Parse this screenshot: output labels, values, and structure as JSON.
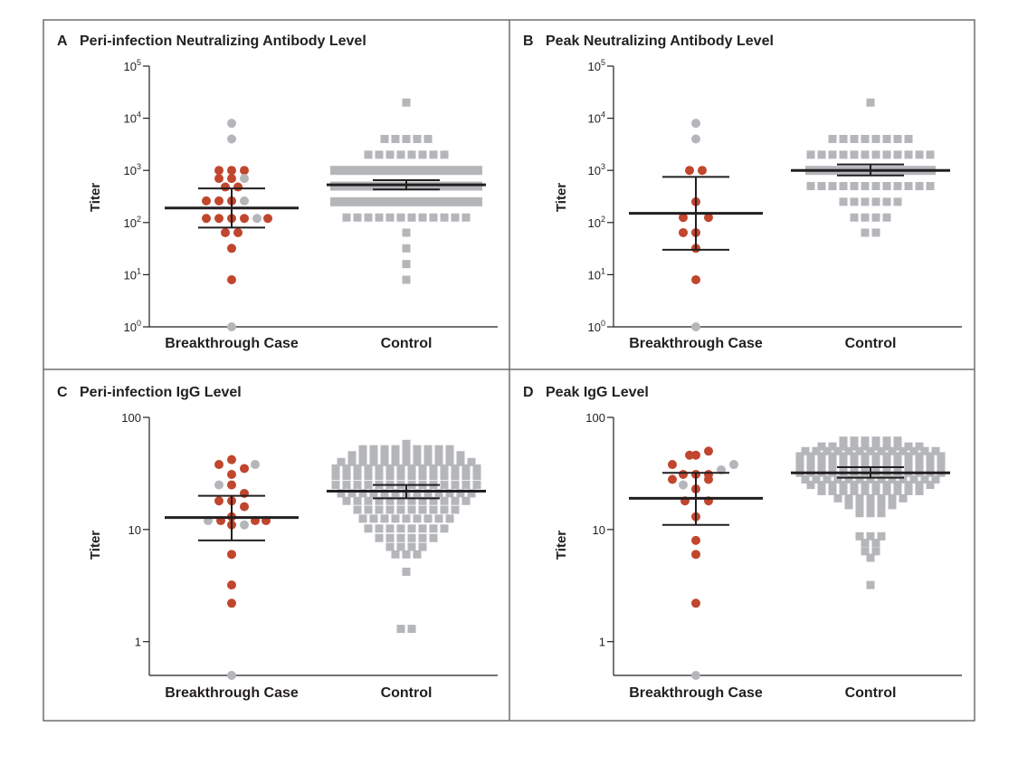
{
  "colors": {
    "breakthrough": "#c0462d",
    "control_gray": "#b4b6ba",
    "axis": "#231f20",
    "frame": "#6d6e71"
  },
  "chart_data": [
    {
      "id": "A",
      "type": "scatter",
      "title": "Peri-infection Neutralizing Antibody Level",
      "ylabel": "Titer",
      "yscale": "log",
      "ylim": [
        1,
        100000
      ],
      "yticks": [
        {
          "value": 1,
          "base": "10",
          "exp": "0"
        },
        {
          "value": 10,
          "base": "10",
          "exp": "1"
        },
        {
          "value": 100,
          "base": "10",
          "exp": "2"
        },
        {
          "value": 1000,
          "base": "10",
          "exp": "3"
        },
        {
          "value": 10000,
          "base": "10",
          "exp": "4"
        },
        {
          "value": 100000,
          "base": "10",
          "exp": "5"
        }
      ],
      "categories": [
        "Breakthrough Case",
        "Control"
      ],
      "series": [
        {
          "name": "Breakthrough Case",
          "points": [
            {
              "y": 8000,
              "x_off": 0,
              "c": "gray"
            },
            {
              "y": 4000,
              "x_off": 0,
              "c": "gray"
            },
            {
              "y": 1000,
              "x_off": -14,
              "c": "red"
            },
            {
              "y": 1000,
              "x_off": 0,
              "c": "red"
            },
            {
              "y": 1000,
              "x_off": 14,
              "c": "red"
            },
            {
              "y": 700,
              "x_off": -14,
              "c": "red"
            },
            {
              "y": 700,
              "x_off": 0,
              "c": "red"
            },
            {
              "y": 700,
              "x_off": 14,
              "c": "gray"
            },
            {
              "y": 480,
              "x_off": -7,
              "c": "red"
            },
            {
              "y": 480,
              "x_off": 7,
              "c": "red"
            },
            {
              "y": 260,
              "x_off": -28,
              "c": "red"
            },
            {
              "y": 260,
              "x_off": -14,
              "c": "red"
            },
            {
              "y": 260,
              "x_off": 0,
              "c": "red"
            },
            {
              "y": 260,
              "x_off": 14,
              "c": "gray"
            },
            {
              "y": 120,
              "x_off": -28,
              "c": "red"
            },
            {
              "y": 120,
              "x_off": -14,
              "c": "red"
            },
            {
              "y": 120,
              "x_off": 0,
              "c": "red"
            },
            {
              "y": 120,
              "x_off": 14,
              "c": "red"
            },
            {
              "y": 120,
              "x_off": 28,
              "c": "gray"
            },
            {
              "y": 120,
              "x_off": 40,
              "c": "red"
            },
            {
              "y": 64,
              "x_off": -7,
              "c": "red"
            },
            {
              "y": 64,
              "x_off": 7,
              "c": "red"
            },
            {
              "y": 32,
              "x_off": 0,
              "c": "red"
            },
            {
              "y": 8,
              "x_off": 0,
              "c": "red"
            },
            {
              "y": 1,
              "x_off": 0,
              "c": "gray"
            }
          ],
          "mean": 190,
          "ci": [
            80,
            450
          ]
        },
        {
          "name": "Control",
          "rows": [
            {
              "y": 20000,
              "n": 1
            },
            {
              "y": 4000,
              "n": 5
            },
            {
              "y": 2000,
              "n": 8
            },
            {
              "y": 1000,
              "n": 14,
              "band": true
            },
            {
              "y": 500,
              "n": 14,
              "band": true
            },
            {
              "y": 250,
              "n": 14,
              "band": true
            },
            {
              "y": 125,
              "n": 12
            },
            {
              "y": 64,
              "n": 1
            },
            {
              "y": 32,
              "n": 1
            },
            {
              "y": 16,
              "n": 1
            },
            {
              "y": 8,
              "n": 1
            }
          ],
          "mean": 530,
          "ci": [
            430,
            650
          ]
        }
      ]
    },
    {
      "id": "B",
      "type": "scatter",
      "title": "Peak Neutralizing Antibody Level",
      "ylabel": "Titer",
      "yscale": "log",
      "ylim": [
        1,
        100000
      ],
      "yticks": [
        {
          "value": 1,
          "base": "10",
          "exp": "0"
        },
        {
          "value": 10,
          "base": "10",
          "exp": "1"
        },
        {
          "value": 100,
          "base": "10",
          "exp": "2"
        },
        {
          "value": 1000,
          "base": "10",
          "exp": "3"
        },
        {
          "value": 10000,
          "base": "10",
          "exp": "4"
        },
        {
          "value": 100000,
          "base": "10",
          "exp": "5"
        }
      ],
      "categories": [
        "Breakthrough Case",
        "Control"
      ],
      "series": [
        {
          "name": "Breakthrough Case",
          "points": [
            {
              "y": 8000,
              "x_off": 0,
              "c": "gray"
            },
            {
              "y": 4000,
              "x_off": 0,
              "c": "gray"
            },
            {
              "y": 1000,
              "x_off": -7,
              "c": "red"
            },
            {
              "y": 1000,
              "x_off": 7,
              "c": "red"
            },
            {
              "y": 250,
              "x_off": 0,
              "c": "red"
            },
            {
              "y": 125,
              "x_off": -14,
              "c": "red"
            },
            {
              "y": 125,
              "x_off": 14,
              "c": "red"
            },
            {
              "y": 64,
              "x_off": -14,
              "c": "red"
            },
            {
              "y": 64,
              "x_off": 0,
              "c": "red"
            },
            {
              "y": 32,
              "x_off": 0,
              "c": "red"
            },
            {
              "y": 8,
              "x_off": 0,
              "c": "red"
            },
            {
              "y": 1,
              "x_off": 0,
              "c": "gray"
            }
          ],
          "mean": 150,
          "ci": [
            30,
            750
          ]
        },
        {
          "name": "Control",
          "rows": [
            {
              "y": 20000,
              "n": 1
            },
            {
              "y": 4000,
              "n": 8
            },
            {
              "y": 2000,
              "n": 12
            },
            {
              "y": 1000,
              "n": 12,
              "band": true
            },
            {
              "y": 500,
              "n": 12
            },
            {
              "y": 250,
              "n": 6
            },
            {
              "y": 125,
              "n": 4
            },
            {
              "y": 64,
              "n": 2
            }
          ],
          "mean": 1000,
          "ci": [
            800,
            1300
          ]
        }
      ]
    },
    {
      "id": "C",
      "type": "scatter",
      "title": "Peri-infection IgG Level",
      "ylabel": "Titer",
      "yscale": "log",
      "ylim": [
        0.5,
        100
      ],
      "yticks": [
        {
          "value": 1,
          "base": "1",
          "exp": ""
        },
        {
          "value": 10,
          "base": "10",
          "exp": ""
        },
        {
          "value": 100,
          "base": "100",
          "exp": ""
        }
      ],
      "categories": [
        "Breakthrough Case",
        "Control"
      ],
      "series": [
        {
          "name": "Breakthrough Case",
          "points": [
            {
              "y": 42,
              "x_off": 0,
              "c": "red"
            },
            {
              "y": 38,
              "x_off": -14,
              "c": "red"
            },
            {
              "y": 38,
              "x_off": 26,
              "c": "gray"
            },
            {
              "y": 35,
              "x_off": 14,
              "c": "red"
            },
            {
              "y": 31,
              "x_off": 0,
              "c": "red"
            },
            {
              "y": 25,
              "x_off": -14,
              "c": "gray"
            },
            {
              "y": 25,
              "x_off": 0,
              "c": "red"
            },
            {
              "y": 21,
              "x_off": 14,
              "c": "red"
            },
            {
              "y": 18,
              "x_off": -14,
              "c": "red"
            },
            {
              "y": 18,
              "x_off": 0,
              "c": "red"
            },
            {
              "y": 16,
              "x_off": 14,
              "c": "red"
            },
            {
              "y": 13,
              "x_off": 0,
              "c": "red"
            },
            {
              "y": 12,
              "x_off": -26,
              "c": "gray"
            },
            {
              "y": 12,
              "x_off": -12,
              "c": "red"
            },
            {
              "y": 12,
              "x_off": 26,
              "c": "red"
            },
            {
              "y": 12,
              "x_off": 38,
              "c": "red"
            },
            {
              "y": 11,
              "x_off": 0,
              "c": "red"
            },
            {
              "y": 11,
              "x_off": 14,
              "c": "gray"
            },
            {
              "y": 6,
              "x_off": 0,
              "c": "red"
            },
            {
              "y": 3.2,
              "x_off": 0,
              "c": "red"
            },
            {
              "y": 2.2,
              "x_off": 0,
              "c": "red"
            },
            {
              "y": 0.5,
              "x_off": 0,
              "c": "gray"
            }
          ],
          "mean": 12.8,
          "ci": [
            8,
            20
          ]
        },
        {
          "name": "Control",
          "rows": [
            {
              "y": 58,
              "n": 1
            },
            {
              "y": 52,
              "n": 9
            },
            {
              "y": 46,
              "n": 11
            },
            {
              "y": 40,
              "n": 13
            },
            {
              "y": 35,
              "n": 14
            },
            {
              "y": 30,
              "n": 14
            },
            {
              "y": 25,
              "n": 14
            },
            {
              "y": 21,
              "n": 13
            },
            {
              "y": 18,
              "n": 12
            },
            {
              "y": 15,
              "n": 10
            },
            {
              "y": 12.5,
              "n": 9
            },
            {
              "y": 10.2,
              "n": 8
            },
            {
              "y": 8.4,
              "n": 6
            },
            {
              "y": 7,
              "n": 4
            },
            {
              "y": 6,
              "n": 3
            },
            {
              "y": 4.2,
              "n": 1
            },
            {
              "y": 1.3,
              "n": 2
            }
          ],
          "mean": 22,
          "ci": [
            19,
            25
          ]
        }
      ]
    },
    {
      "id": "D",
      "type": "scatter",
      "title": "Peak IgG Level",
      "ylabel": "Titer",
      "yscale": "log",
      "ylim": [
        0.5,
        100
      ],
      "yticks": [
        {
          "value": 1,
          "base": "1",
          "exp": ""
        },
        {
          "value": 10,
          "base": "10",
          "exp": ""
        },
        {
          "value": 100,
          "base": "100",
          "exp": ""
        }
      ],
      "categories": [
        "Breakthrough Case",
        "Control"
      ],
      "series": [
        {
          "name": "Breakthrough Case",
          "points": [
            {
              "y": 50,
              "x_off": 14,
              "c": "red"
            },
            {
              "y": 46,
              "x_off": -7,
              "c": "red"
            },
            {
              "y": 46,
              "x_off": 0,
              "c": "red"
            },
            {
              "y": 38,
              "x_off": -26,
              "c": "red"
            },
            {
              "y": 38,
              "x_off": 42,
              "c": "gray"
            },
            {
              "y": 34,
              "x_off": 28,
              "c": "gray"
            },
            {
              "y": 31,
              "x_off": -14,
              "c": "red"
            },
            {
              "y": 31,
              "x_off": 0,
              "c": "red"
            },
            {
              "y": 31,
              "x_off": 14,
              "c": "red"
            },
            {
              "y": 28,
              "x_off": -26,
              "c": "red"
            },
            {
              "y": 28,
              "x_off": 14,
              "c": "red"
            },
            {
              "y": 25,
              "x_off": -14,
              "c": "gray"
            },
            {
              "y": 23,
              "x_off": 0,
              "c": "red"
            },
            {
              "y": 18,
              "x_off": -12,
              "c": "red"
            },
            {
              "y": 18,
              "x_off": 14,
              "c": "red"
            },
            {
              "y": 13,
              "x_off": 0,
              "c": "red"
            },
            {
              "y": 8,
              "x_off": 0,
              "c": "red"
            },
            {
              "y": 6,
              "x_off": 0,
              "c": "red"
            },
            {
              "y": 2.2,
              "x_off": 0,
              "c": "red"
            },
            {
              "y": 0.5,
              "x_off": 0,
              "c": "gray"
            }
          ],
          "mean": 19,
          "ci": [
            11,
            32
          ]
        },
        {
          "name": "Control",
          "rows": [
            {
              "y": 62,
              "n": 6
            },
            {
              "y": 55,
              "n": 10
            },
            {
              "y": 50,
              "n": 13
            },
            {
              "y": 45,
              "n": 14
            },
            {
              "y": 40,
              "n": 14
            },
            {
              "y": 36,
              "n": 14
            },
            {
              "y": 32,
              "n": 14
            },
            {
              "y": 28,
              "n": 13
            },
            {
              "y": 25,
              "n": 12
            },
            {
              "y": 22,
              "n": 10
            },
            {
              "y": 19,
              "n": 7
            },
            {
              "y": 16.5,
              "n": 5
            },
            {
              "y": 14,
              "n": 3
            },
            {
              "y": 8.7,
              "n": 3
            },
            {
              "y": 7.6,
              "n": 2
            },
            {
              "y": 6.4,
              "n": 2
            },
            {
              "y": 5.6,
              "n": 1
            },
            {
              "y": 3.2,
              "n": 1
            }
          ],
          "mean": 32,
          "ci": [
            29,
            36
          ]
        }
      ]
    }
  ]
}
